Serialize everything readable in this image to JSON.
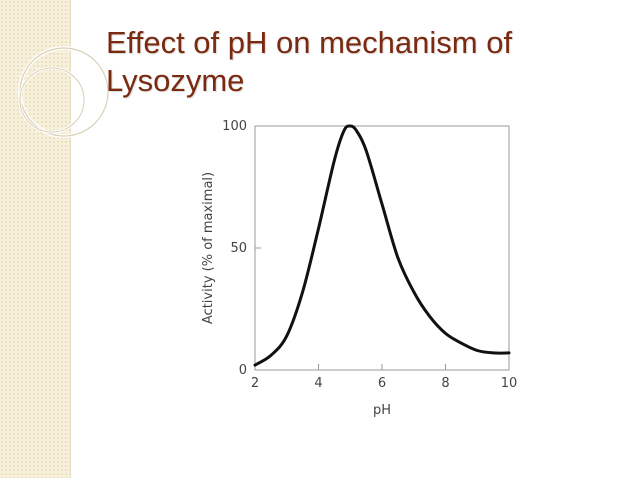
{
  "slide": {
    "title": "Effect of pH on mechanism of Lysozyme"
  },
  "theme": {
    "title_color": "#7a2a10",
    "band_color": "#f7f0dc",
    "curve_color": "#111111"
  },
  "chart_data": {
    "type": "line",
    "title": "",
    "xlabel": "pH",
    "ylabel": "Activity (% of maximal)",
    "xlim": [
      2,
      10
    ],
    "ylim": [
      0,
      100
    ],
    "xticks": [
      2,
      4,
      6,
      8,
      10
    ],
    "yticks": [
      0,
      50,
      100
    ],
    "grid": false,
    "legend": "none",
    "series": [
      {
        "x": [
          2.0,
          2.5,
          3.0,
          3.5,
          4.0,
          4.5,
          4.8,
          5.0,
          5.2,
          5.5,
          6.0,
          6.5,
          7.0,
          7.5,
          8.0,
          8.5,
          9.0,
          9.5,
          10.0
        ],
        "values": [
          2,
          6,
          14,
          32,
          58,
          86,
          98,
          100,
          98,
          90,
          68,
          46,
          32,
          22,
          15,
          11,
          8,
          7,
          7
        ]
      }
    ]
  }
}
